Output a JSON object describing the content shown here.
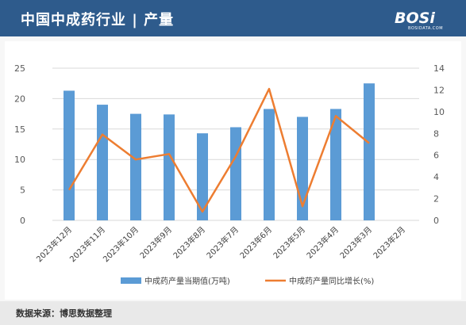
{
  "header": {
    "title": "中国中成药行业 | 产量",
    "logo_text": "BOSi",
    "logo_sub": "BOSIDATA.COM"
  },
  "footer": {
    "source": "数据来源：博思数据整理"
  },
  "colors": {
    "header_bg": "#2e5b8c",
    "bar": "#5b9bd5",
    "line": "#ed7d31"
  },
  "chart_data": {
    "type": "bar",
    "title": "",
    "categories": [
      "2023年12月",
      "2023年11月",
      "2023年10月",
      "2023年9月",
      "2023年8月",
      "2023年7月",
      "2023年6月",
      "2023年5月",
      "2023年4月",
      "2023年3月",
      "2023年2月"
    ],
    "series": [
      {
        "name": "中成药产量当期值(万吨)",
        "type": "bar",
        "axis": "left",
        "values": [
          21.3,
          19.0,
          17.5,
          17.4,
          14.3,
          15.3,
          18.3,
          17.0,
          18.3,
          22.5,
          null
        ]
      },
      {
        "name": "中成药产量同比增长(%)",
        "type": "line",
        "axis": "right",
        "values": [
          2.8,
          7.9,
          5.6,
          6.1,
          0.8,
          5.9,
          12.1,
          1.3,
          9.6,
          7.1,
          null
        ]
      }
    ],
    "y_left": {
      "min": 0,
      "max": 25,
      "ticks": [
        0,
        5,
        10,
        15,
        20,
        25
      ]
    },
    "y_right": {
      "min": 0,
      "max": 14,
      "ticks": [
        0,
        2,
        4,
        6,
        8,
        10,
        12,
        14
      ]
    },
    "grid": true,
    "legend_position": "bottom"
  }
}
